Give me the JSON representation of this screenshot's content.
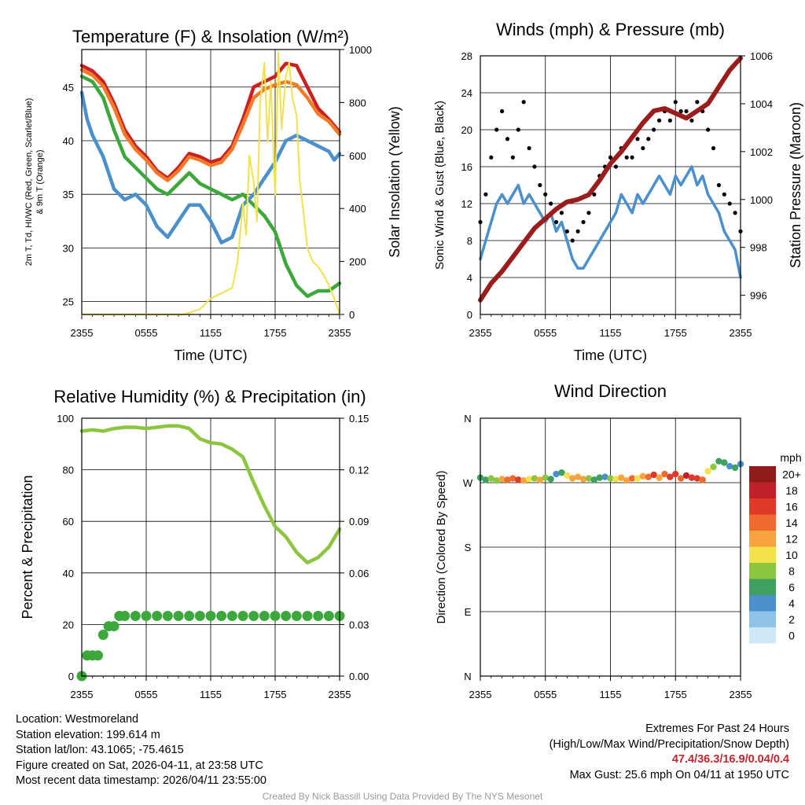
{
  "colors": {
    "t2m": "#cc1f1f",
    "t9m": "#f07a28",
    "dewpoint": "#4a90cc",
    "hiwc": "#3ca83c",
    "insolation": "#f2e24a",
    "sonic": "#4a90cc",
    "gust": "#000000",
    "pressure": "#9b1c1c",
    "rh": "#8cc63f",
    "precip": "#3ca83c"
  },
  "chart_data": [
    {
      "id": "temp",
      "type": "line",
      "title": "Temperature (F) & Insolation (W/m²)",
      "xlabel": "Time (UTC)",
      "ylabel": "2m T, Td, HI/WC (Red, Green, Scarlet/Blue) & 9m T (Orange)",
      "ylabel_line1": "2m T, Td, HI/WC (Red, Green, Scarlet/Blue)",
      "ylabel_line2": "& 9m T (Orange)",
      "y2label": "Solar Insolation (Yellow)",
      "x_ticks": [
        "2355",
        "0555",
        "1155",
        "1755",
        "2355"
      ],
      "x_range": [
        0,
        24
      ],
      "ylim": [
        23.8,
        48.5
      ],
      "y_ticks": [
        25,
        30,
        35,
        40,
        45
      ],
      "y2lim": [
        0,
        1000
      ],
      "y2_ticks": [
        0,
        200,
        400,
        600,
        800,
        1000
      ],
      "series": [
        {
          "name": "2m Temperature",
          "axis": "y",
          "color": "#cc1f1f",
          "x": [
            0,
            1,
            2,
            3,
            4,
            5,
            6,
            7,
            8,
            9,
            10,
            11,
            12,
            13,
            14,
            15,
            16,
            17,
            18,
            19,
            20,
            21,
            22,
            23,
            24
          ],
          "values": [
            47,
            46.5,
            45.5,
            43.5,
            41,
            39.5,
            38.5,
            37.2,
            36.5,
            37.5,
            38.8,
            38.5,
            38,
            38.3,
            39.5,
            42,
            45,
            45.5,
            46,
            47.2,
            47,
            45,
            43,
            42,
            40.8
          ]
        },
        {
          "name": "9m Temperature",
          "axis": "y",
          "color": "#f07a28",
          "x": [
            0,
            1,
            2,
            3,
            4,
            5,
            6,
            7,
            8,
            9,
            10,
            11,
            12,
            13,
            14,
            15,
            16,
            17,
            18,
            19,
            20,
            21,
            22,
            23,
            24
          ],
          "values": [
            46.6,
            46.1,
            45.1,
            43.1,
            40.6,
            39.2,
            38.2,
            37,
            36.3,
            37.2,
            38.5,
            38.2,
            37.7,
            38,
            39.2,
            41.5,
            44,
            44.8,
            45.2,
            45.5,
            45.2,
            44,
            42.5,
            41.8,
            40.6
          ]
        },
        {
          "name": "Dew Point",
          "axis": "y",
          "color": "#3ca83c",
          "x": [
            0,
            1,
            2,
            3,
            4,
            5,
            6,
            7,
            8,
            9,
            10,
            11,
            12,
            13,
            14,
            15,
            16,
            17,
            18,
            19,
            20,
            21,
            22,
            23,
            24
          ],
          "values": [
            46,
            45.5,
            44,
            41,
            38.5,
            37.5,
            36.5,
            35.5,
            35,
            36,
            37,
            36,
            35.5,
            35,
            34.5,
            35,
            34,
            33,
            31.5,
            28.5,
            26.5,
            25.5,
            26,
            26,
            26.7
          ]
        },
        {
          "name": "Heat Index / Wind Chill",
          "axis": "y",
          "color": "#4a90cc",
          "x": [
            0,
            0.5,
            1,
            2,
            3,
            4,
            5,
            6,
            7,
            8,
            9,
            10,
            11,
            12,
            13,
            14,
            15,
            16,
            17,
            18,
            19,
            20,
            21,
            22,
            23,
            23.5,
            24
          ],
          "values": [
            44.5,
            42,
            40.5,
            38.5,
            35.5,
            34.5,
            35,
            34,
            32,
            31,
            32.5,
            34,
            34,
            32.5,
            30.5,
            31,
            34,
            35,
            36.5,
            38,
            40,
            40.5,
            40,
            39.5,
            39,
            38.2,
            38.8
          ]
        },
        {
          "name": "Solar Insolation",
          "axis": "y2",
          "color": "#f2e24a",
          "x": [
            0,
            9.5,
            11,
            12,
            13,
            14,
            14.5,
            15,
            15.3,
            15.6,
            16,
            16.3,
            16.6,
            17,
            17.3,
            17.6,
            18,
            18.3,
            18.6,
            19,
            19.3,
            19.6,
            20,
            20.3,
            20.6,
            21,
            21.5,
            22,
            22.5,
            23,
            23.5,
            24
          ],
          "values": [
            0,
            0,
            20,
            60,
            80,
            100,
            200,
            420,
            300,
            600,
            500,
            350,
            800,
            950,
            650,
            880,
            450,
            990,
            700,
            900,
            950,
            820,
            750,
            500,
            400,
            250,
            200,
            180,
            150,
            110,
            60,
            0
          ]
        }
      ]
    },
    {
      "id": "winds",
      "type": "line",
      "title": "Winds (mph) & Pressure (mb)",
      "xlabel": "Time (UTC)",
      "ylabel": "Sonic Wind & Gust (Blue, Black)",
      "y2label": "Station Pressure (Maroon)",
      "x_ticks": [
        "2355",
        "0555",
        "1155",
        "1755",
        "2355"
      ],
      "x_range": [
        0,
        24
      ],
      "ylim": [
        0,
        28
      ],
      "y_ticks": [
        0,
        4,
        8,
        12,
        16,
        20,
        24,
        28
      ],
      "y2lim": [
        995.2,
        1006
      ],
      "y2_ticks": [
        996,
        998,
        1000,
        1002,
        1004,
        1006
      ],
      "series": [
        {
          "name": "Sonic Wind",
          "axis": "y",
          "color": "#4a90cc",
          "x": [
            0,
            0.5,
            1,
            1.5,
            2,
            2.5,
            3,
            3.5,
            4,
            4.5,
            5,
            5.5,
            6,
            6.5,
            7,
            7.5,
            8,
            8.5,
            9,
            9.5,
            10,
            10.5,
            11,
            11.5,
            12,
            12.5,
            13,
            13.5,
            14,
            14.5,
            15,
            15.5,
            16,
            16.5,
            17,
            17.5,
            18,
            18.5,
            19,
            19.5,
            20,
            20.5,
            21,
            21.5,
            22,
            22.5,
            23,
            23.5,
            24
          ],
          "values": [
            6,
            8,
            10,
            12,
            13,
            12,
            13,
            14,
            12,
            13,
            12,
            11,
            10,
            11,
            9,
            10,
            8,
            6,
            5,
            5,
            6,
            7,
            8,
            9,
            10,
            11,
            13,
            12,
            11,
            13,
            12,
            13,
            14,
            15,
            14,
            13,
            15,
            14,
            15,
            16,
            14,
            15,
            13,
            12,
            11,
            9,
            8,
            7,
            4
          ]
        },
        {
          "name": "Gust",
          "axis": "y",
          "color": "#000000",
          "style": "points",
          "x": [
            0,
            0.5,
            1,
            1.5,
            2,
            2.5,
            3,
            3.5,
            4,
            4.5,
            5,
            5.5,
            6,
            6.5,
            7,
            7.5,
            8,
            8.5,
            9,
            9.5,
            10,
            10.5,
            11,
            11.5,
            12,
            12.5,
            13,
            13.5,
            14,
            14.5,
            15,
            15.5,
            16,
            16.5,
            17,
            17.5,
            18,
            18.5,
            19,
            19.5,
            20,
            20.5,
            21,
            21.5,
            22,
            22.5,
            23,
            23.5,
            24
          ],
          "values": [
            10,
            13,
            17,
            20,
            22,
            19,
            17,
            20,
            23,
            18,
            16,
            14,
            13,
            12,
            10,
            11,
            9,
            8,
            9,
            10,
            11,
            13,
            15,
            16,
            17,
            16,
            18,
            17,
            17,
            19,
            18,
            19,
            20,
            21,
            22,
            21,
            23,
            22,
            22,
            21,
            23,
            22,
            20,
            18,
            14,
            13,
            12,
            11,
            9
          ]
        },
        {
          "name": "Station Pressure",
          "axis": "y2",
          "color": "#9b1c1c",
          "x": [
            0,
            1,
            2,
            3,
            4,
            5,
            6,
            7,
            8,
            9,
            10,
            11,
            12,
            13,
            14,
            15,
            16,
            17,
            18,
            19,
            20,
            21,
            22,
            23,
            24
          ],
          "values": [
            995.8,
            996.5,
            997,
            997.6,
            998.2,
            998.8,
            999.2,
            999.6,
            999.9,
            1000,
            1000.2,
            1000.8,
            1001.5,
            1002,
            1002.6,
            1003.2,
            1003.7,
            1003.8,
            1003.6,
            1003.4,
            1003.7,
            1004,
            1004.7,
            1005.4,
            1005.9
          ]
        }
      ]
    },
    {
      "id": "rh",
      "type": "line",
      "title": "Relative Humidity (%) & Precipitation (in)",
      "xlabel": "",
      "ylabel": "Percent & Precipitation",
      "x_ticks": [
        "2355",
        "0555",
        "1155",
        "1755",
        "2355"
      ],
      "x_range": [
        0,
        24
      ],
      "ylim": [
        0,
        100
      ],
      "y_ticks": [
        0,
        20,
        40,
        60,
        80,
        100
      ],
      "y2lim": [
        0,
        0.15
      ],
      "y2_ticks": [
        "0.00",
        "0.03",
        "0.06",
        "0.09",
        "0.12",
        "0.15"
      ],
      "series": [
        {
          "name": "Relative Humidity",
          "axis": "y",
          "color": "#8cc63f",
          "x": [
            0,
            1,
            2,
            3,
            4,
            5,
            6,
            7,
            8,
            9,
            10,
            11,
            12,
            13,
            14,
            15,
            16,
            17,
            18,
            19,
            20,
            21,
            22,
            23,
            24
          ],
          "values": [
            95,
            95.5,
            95,
            96,
            96.5,
            96.5,
            96,
            96.5,
            97,
            97,
            96,
            92,
            90.5,
            90,
            88,
            85,
            75,
            66,
            58,
            54,
            48,
            44,
            46,
            50,
            57
          ]
        },
        {
          "name": "Precipitation",
          "axis": "y2",
          "color": "#3ca83c",
          "style": "points",
          "x": [
            0,
            0.5,
            1,
            1.5,
            2,
            2.5,
            3,
            3.5,
            4,
            5,
            6,
            7,
            8,
            9,
            10,
            11,
            12,
            13,
            14,
            15,
            16,
            17,
            18,
            19,
            20,
            21,
            22,
            23,
            24
          ],
          "values": [
            0,
            0.012,
            0.012,
            0.012,
            0.024,
            0.029,
            0.029,
            0.035,
            0.035,
            0.035,
            0.035,
            0.035,
            0.035,
            0.035,
            0.035,
            0.035,
            0.035,
            0.035,
            0.035,
            0.035,
            0.035,
            0.035,
            0.035,
            0.035,
            0.035,
            0.035,
            0.035,
            0.035,
            0.035
          ]
        }
      ]
    },
    {
      "id": "wdir",
      "type": "scatter",
      "title": "Wind Direction",
      "xlabel": "",
      "ylabel": "Direction (Colored By Speed)",
      "x_ticks": [
        "2355",
        "0555",
        "1155",
        "1755",
        "2355"
      ],
      "x_range": [
        0,
        24
      ],
      "ylim": [
        0,
        360
      ],
      "y_ticks": [
        "N",
        "E",
        "S",
        "W",
        "N"
      ],
      "legend_title": "mph",
      "legend_labels": [
        "0",
        "2",
        "4",
        "6",
        "8",
        "10",
        "12",
        "14",
        "16",
        "18",
        "20+"
      ],
      "legend_colors": [
        "#cfe8f8",
        "#8fc3e8",
        "#4a90cc",
        "#3fa060",
        "#8cc63f",
        "#f3e24c",
        "#f6a340",
        "#ef6a2c",
        "#dd3b28",
        "#c0202a",
        "#8f1a1a"
      ],
      "x": [
        0,
        0.5,
        1,
        1.5,
        2,
        2.5,
        3,
        3.5,
        4,
        4.5,
        5,
        5.5,
        6,
        6.5,
        7,
        7.5,
        8,
        8.5,
        9,
        9.5,
        10,
        10.5,
        11,
        11.5,
        12,
        12.5,
        13,
        13.5,
        14,
        14.5,
        15,
        15.5,
        16,
        16.5,
        17,
        17.5,
        18,
        18.5,
        19,
        19.5,
        20,
        20.5,
        21,
        21.5,
        22,
        22.5,
        23,
        23.5,
        24
      ],
      "values": [
        277,
        274,
        276,
        273,
        275,
        274,
        276,
        274,
        273,
        275,
        276,
        274,
        277,
        275,
        282,
        284,
        280,
        276,
        278,
        275,
        276,
        274,
        277,
        278,
        276,
        275,
        277,
        273,
        276,
        276,
        279,
        278,
        281,
        277,
        282,
        278,
        282,
        276,
        280,
        277,
        276,
        274,
        286,
        292,
        300,
        298,
        293,
        291,
        296
      ],
      "speeds": [
        6,
        5,
        7,
        8,
        12,
        14,
        14,
        16,
        12,
        10,
        8,
        12,
        8,
        6,
        4,
        6,
        10,
        12,
        12,
        11,
        8,
        6,
        5,
        4,
        8,
        10,
        12,
        12,
        14,
        10,
        12,
        14,
        16,
        12,
        14,
        16,
        16,
        14,
        18,
        16,
        16,
        14,
        10,
        8,
        6,
        6,
        4,
        6,
        4
      ]
    }
  ],
  "info_left": {
    "location": "Location: Westmoreland",
    "elevation": "Station elevation: 199.614 m",
    "latlon": "Station lat/lon: 43.1065; -75.4615",
    "created": "Figure created on Sat, 2026-04-11, at 23:58 UTC",
    "recent": "Most recent data timestamp: 2026/04/11 23:55:00"
  },
  "info_right": {
    "title": "Extremes For Past 24 Hours",
    "subtitle": "(High/Low/Max Wind/Precipitation/Snow Depth)",
    "values": "47.4/36.3/16.9/0.04/0.4",
    "max_gust": "Max Gust: 25.6 mph On 04/11 at 1950 UTC"
  },
  "credit": "Created By Nick Bassill Using Data Provided By The NYS Mesonet"
}
